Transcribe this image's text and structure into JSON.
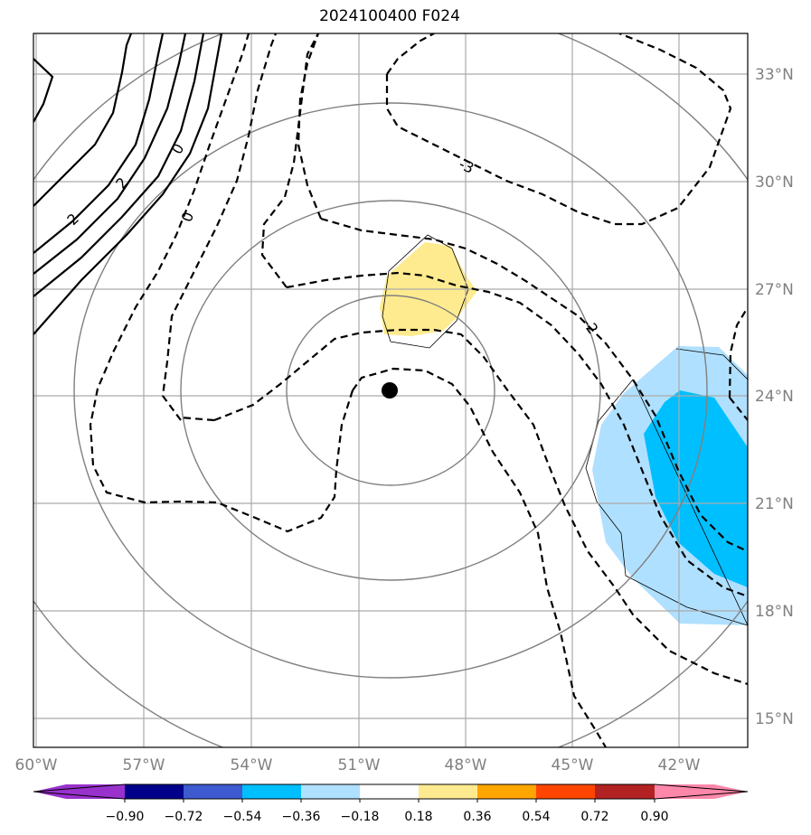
{
  "title": "2024100400 F024",
  "map": {
    "lat_labels": [
      "33°N",
      "30°N",
      "27°N",
      "24°N",
      "21°N",
      "18°N",
      "15°N"
    ],
    "lon_labels": [
      "60°W",
      "57°W",
      "54°W",
      "51°W",
      "48°W",
      "45°W",
      "42°W"
    ],
    "contour_labels": [
      "0",
      "0",
      "2",
      "2",
      "-3",
      "-2"
    ]
  },
  "colorbar": {
    "ticks": [
      "−0.90",
      "−0.72",
      "−0.54",
      "−0.36",
      "−0.18",
      "0.18",
      "0.36",
      "0.54",
      "0.72",
      "0.90"
    ],
    "colors": [
      "#9932cc",
      "#00008b",
      "#3d5ad0",
      "#00bfff",
      "#b0e0ff",
      "#ffffff",
      "#ffeb8f",
      "#ffa500",
      "#ff4500",
      "#b22222",
      "#ff88aa"
    ]
  }
}
